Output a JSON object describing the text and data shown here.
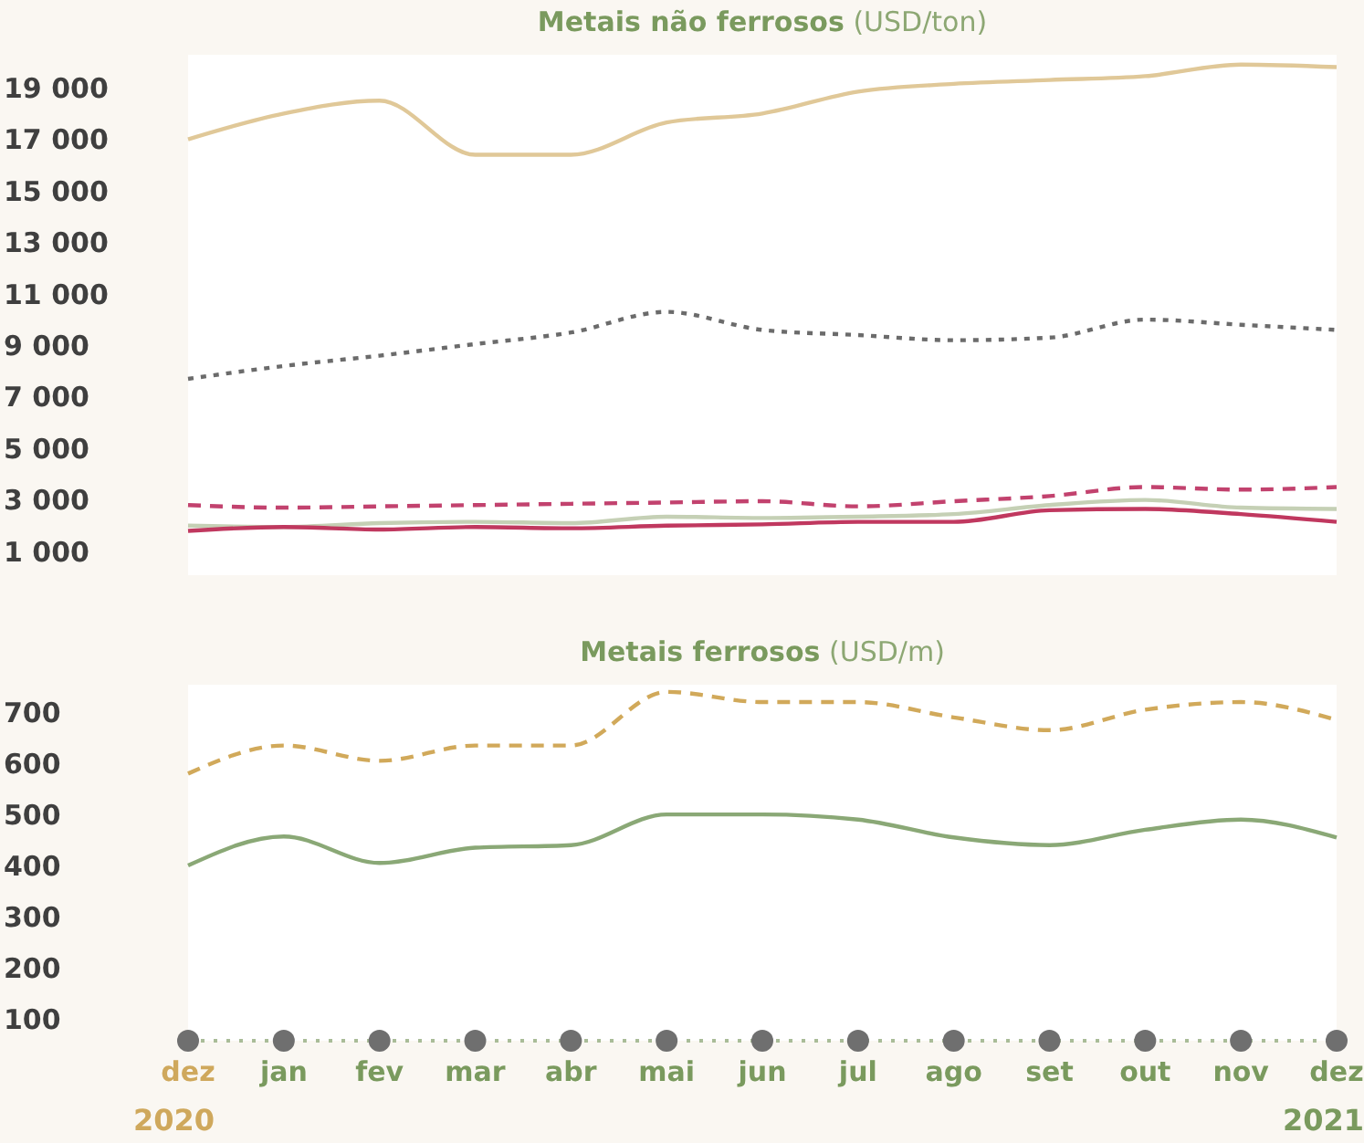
{
  "chart_data": [
    {
      "type": "line",
      "title": "Metais não ferrosos",
      "subtitle": "(USD/ton)",
      "categories": [
        null,
        null,
        null,
        null,
        null,
        null,
        null,
        null,
        null,
        null,
        null,
        null,
        null
      ],
      "series": [
        {
          "color": "#e0c898",
          "line_style": "solid",
          "values": [
            17000,
            18000,
            18500,
            16400,
            16400,
            17650,
            18000,
            18850,
            19150,
            19300,
            19450,
            19900,
            19800
          ]
        },
        {
          "color": "#6b6b6b",
          "line_style": "dotted",
          "values": [
            7700,
            8200,
            8600,
            9050,
            9500,
            10300,
            9600,
            9400,
            9200,
            9300,
            10000,
            9800,
            9600
          ]
        },
        {
          "color": "#c2426e",
          "line_style": "dashed",
          "values": [
            2800,
            2700,
            2750,
            2800,
            2850,
            2900,
            2950,
            2750,
            2950,
            3150,
            3500,
            3400,
            3500
          ]
        },
        {
          "color": "#c5d0b5",
          "line_style": "solid",
          "values": [
            2000,
            1950,
            2100,
            2150,
            2100,
            2350,
            2300,
            2350,
            2450,
            2800,
            3000,
            2700,
            2650
          ]
        },
        {
          "color": "#c0385f",
          "line_style": "solid",
          "values": [
            1800,
            1950,
            1850,
            1950,
            1900,
            2000,
            2050,
            2150,
            2150,
            2600,
            2650,
            2450,
            2150
          ]
        }
      ],
      "ylim": [
        80,
        20280
      ],
      "yticks": [
        {
          "value": 1000,
          "label": "1 000"
        },
        {
          "value": 3000,
          "label": "3 000"
        },
        {
          "value": 5000,
          "label": "5 000"
        },
        {
          "value": 7000,
          "label": "7 000"
        },
        {
          "value": 9000,
          "label": "9 000"
        },
        {
          "value": 11000,
          "label": "11 000"
        },
        {
          "value": 13000,
          "label": "13 000"
        },
        {
          "value": 15000,
          "label": "15 000"
        },
        {
          "value": 17000,
          "label": "17 000"
        },
        {
          "value": 19000,
          "label": "19 000"
        }
      ],
      "tick_labels": "y",
      "grid": false,
      "legend": false
    },
    {
      "type": "line",
      "title": "Metais ferrosos",
      "subtitle": "(USD/m)",
      "categories": [
        "dez",
        "jan",
        "fev",
        "mar",
        "abr",
        "mai",
        "jun",
        "jul",
        "ago",
        "set",
        "out",
        "nov",
        "dez"
      ],
      "series": [
        {
          "color": "#d1a95a",
          "line_style": "dashed",
          "values": [
            580,
            635,
            605,
            635,
            635,
            740,
            720,
            720,
            690,
            665,
            705,
            720,
            685
          ]
        },
        {
          "color": "#8aa876",
          "line_style": "solid",
          "values": [
            400,
            457,
            405,
            435,
            440,
            500,
            500,
            490,
            455,
            440,
            470,
            490,
            455
          ]
        }
      ],
      "ylim": [
        57,
        754
      ],
      "yticks": [
        100,
        200,
        300,
        400,
        500,
        600,
        700
      ],
      "annotations": [
        "2020",
        "2021"
      ],
      "grid": false,
      "legend": false
    }
  ]
}
